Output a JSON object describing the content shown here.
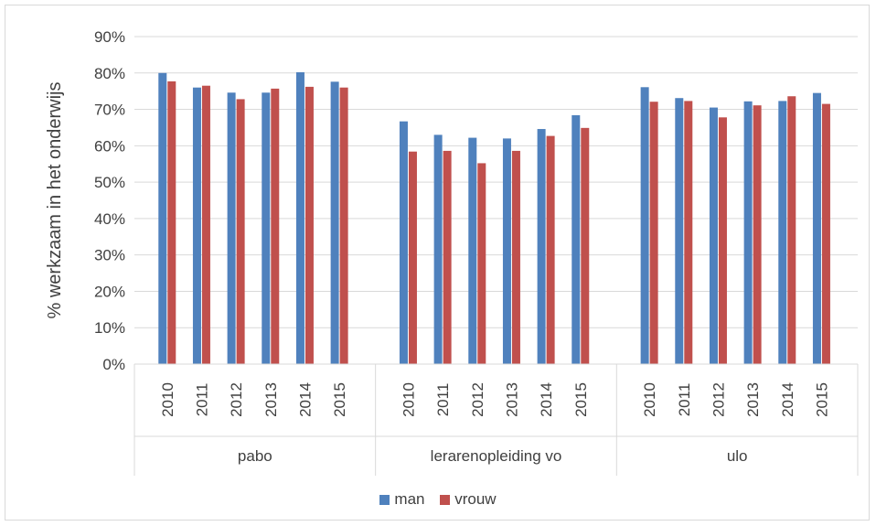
{
  "chart_data": {
    "type": "bar",
    "ylabel": "% werkzaam in het onderwijs",
    "xlabel": "",
    "ylim": [
      0,
      90
    ],
    "yticks": [
      "0%",
      "10%",
      "20%",
      "30%",
      "40%",
      "50%",
      "60%",
      "70%",
      "80%",
      "90%"
    ],
    "grid": true,
    "legend_position": "bottom",
    "groups": [
      {
        "name": "pabo",
        "years": [
          "2010",
          "2011",
          "2012",
          "2013",
          "2014",
          "2015"
        ]
      },
      {
        "name": "lerarenopleiding vo",
        "years": [
          "2010",
          "2011",
          "2012",
          "2013",
          "2014",
          "2015"
        ]
      },
      {
        "name": "ulo",
        "years": [
          "2010",
          "2011",
          "2012",
          "2013",
          "2014",
          "2015"
        ]
      }
    ],
    "series": [
      {
        "name": "man",
        "color": "#4f81bd",
        "values": [
          80.0,
          76.0,
          74.6,
          74.6,
          80.2,
          77.6,
          66.7,
          63.0,
          62.2,
          62.0,
          64.6,
          68.4,
          76.1,
          73.1,
          70.5,
          72.2,
          72.3,
          74.5
        ]
      },
      {
        "name": "vrouw",
        "color": "#c0504d",
        "values": [
          77.7,
          76.5,
          72.8,
          75.7,
          76.2,
          76.0,
          58.4,
          58.6,
          55.2,
          58.6,
          62.7,
          64.9,
          72.1,
          72.3,
          67.8,
          71.1,
          73.6,
          71.5
        ]
      }
    ]
  }
}
